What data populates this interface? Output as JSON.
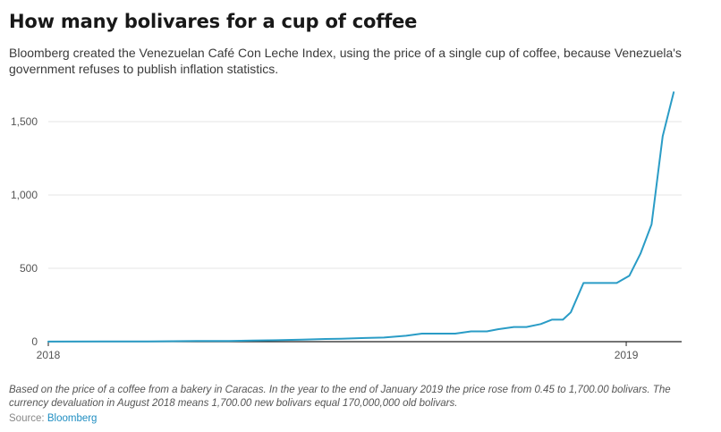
{
  "title": "How many bolivares for a cup of coffee",
  "subtitle": "Bloomberg created the Venezuelan Café Con Leche Index, using the price of a single cup of coffee, because Venezuela's government refuses to publish inflation statistics.",
  "note": "Based on the price of a coffee from a bakery in Caracas. In the year to the end of January 2019 the price rose from 0.45 to 1,700.00 bolivars. The currency devaluation in August 2018 means 1,700.00 new bolivars equal 170,000,000 old bolivars.",
  "source": {
    "label": "Source:",
    "name": "Bloomberg"
  },
  "colors": {
    "line": "#2a9cc6",
    "grid": "#e4e4e4",
    "axis": "#222222"
  },
  "chart_data": {
    "type": "line",
    "title": "How many bolivares for a cup of coffee",
    "xlabel": "",
    "ylabel": "",
    "xlim": [
      "2018-01-01",
      "2019-02-05"
    ],
    "ylim": [
      0,
      1750
    ],
    "y_ticks": [
      0,
      500,
      1000,
      1500
    ],
    "y_tick_labels": [
      "0",
      "500",
      "1,000",
      "1,500"
    ],
    "x_ticks": [
      "2018-01-01",
      "2019-01-01"
    ],
    "x_tick_labels": [
      "2018",
      "2019"
    ],
    "grid": "horizontal",
    "legend": "none",
    "series": [
      {
        "x": [
          "2018-01-01",
          "2018-02-05",
          "2018-03-05",
          "2018-04-05",
          "2018-04-25",
          "2018-05-10",
          "2018-05-25",
          "2018-06-10",
          "2018-06-25",
          "2018-07-05",
          "2018-07-20",
          "2018-08-01",
          "2018-08-15",
          "2018-08-25",
          "2018-09-05",
          "2018-09-15",
          "2018-09-25",
          "2018-10-05",
          "2018-10-12",
          "2018-10-22",
          "2018-10-30",
          "2018-11-08",
          "2018-11-15",
          "2018-11-22",
          "2018-11-27",
          "2018-12-05",
          "2018-12-12",
          "2018-12-20",
          "2018-12-26",
          "2019-01-03",
          "2019-01-10",
          "2019-01-17",
          "2019-01-24",
          "2019-01-31"
        ],
        "y": [
          0.45,
          1,
          2,
          4,
          5,
          8,
          10,
          14,
          18,
          20,
          25,
          28,
          40,
          55,
          55,
          55,
          70,
          70,
          85,
          100,
          100,
          120,
          150,
          150,
          200,
          400,
          400,
          400,
          400,
          450,
          600,
          800,
          1400,
          1700
        ]
      }
    ]
  }
}
